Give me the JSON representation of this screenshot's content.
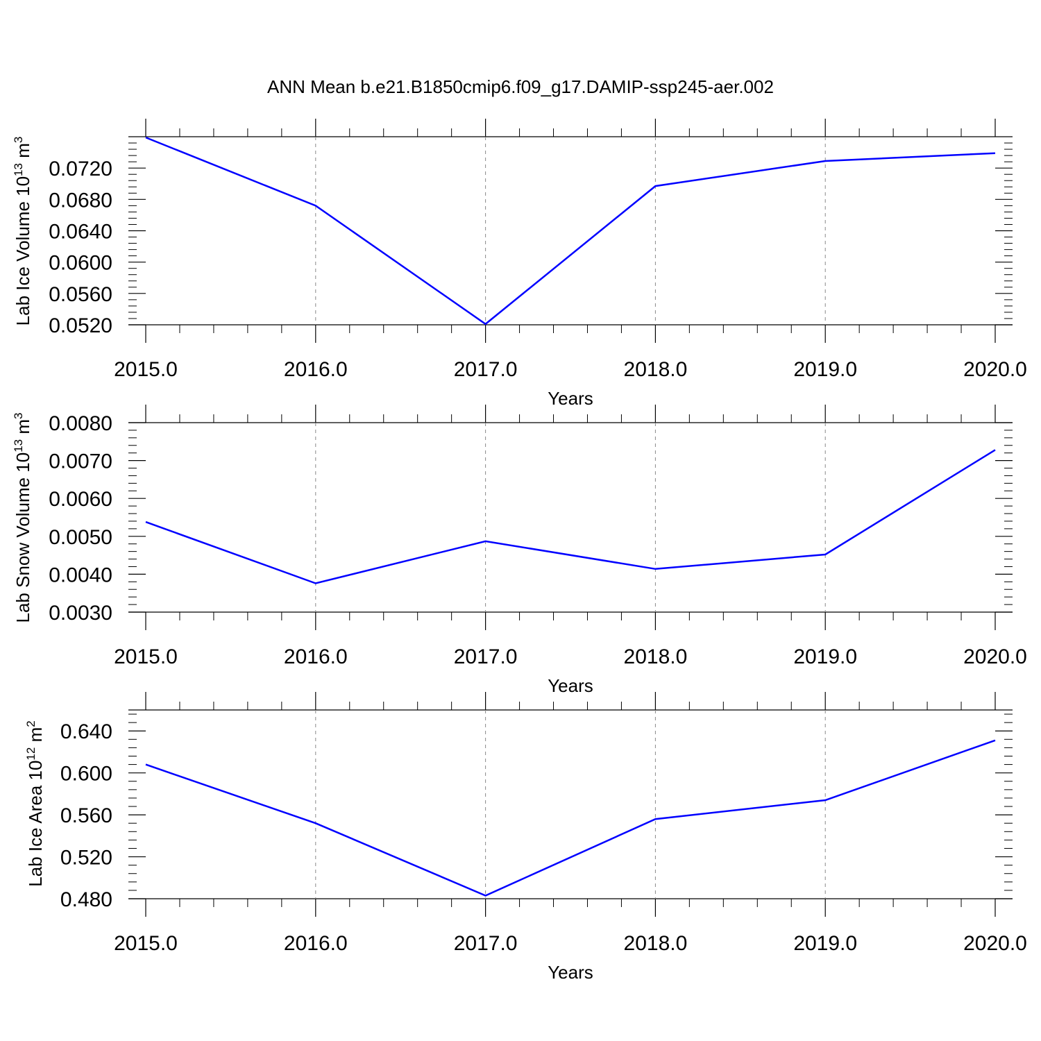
{
  "figure_title": "ANN Mean b.e21.B1850cmip6.f09_g17.DAMIP-ssp245-aer.002",
  "colors": {
    "line": "#0000ff",
    "axis": "#000000",
    "grid": "#888888"
  },
  "panels": [
    {
      "ylabel": {
        "main": "Lab Ice Volume 10",
        "sup": "13",
        "unit": " m",
        "unit_sup": "3"
      },
      "xlabel": "Years"
    },
    {
      "ylabel": {
        "main": "Lab Snow Volume 10",
        "sup": "13",
        "unit": " m",
        "unit_sup": "3"
      },
      "xlabel": "Years"
    },
    {
      "ylabel": {
        "main": "Lab Ice Area 10",
        "sup": "12",
        "unit": " m",
        "unit_sup": "2"
      },
      "xlabel": "Years"
    }
  ],
  "chart_data": [
    {
      "type": "line",
      "title": "ANN Mean b.e21.B1850cmip6.f09_g17.DAMIP-ssp245-aer.002",
      "xlabel": "Years",
      "ylabel": "Lab Ice Volume 10^13 m^3",
      "x": [
        2015,
        2016,
        2017,
        2018,
        2019,
        2020
      ],
      "series": [
        {
          "values": [
            0.0759,
            0.0672,
            0.0521,
            0.0697,
            0.0729,
            0.0739
          ]
        }
      ],
      "xlim": [
        2015,
        2020.1
      ],
      "ylim": [
        0.052,
        0.076
      ],
      "xticks": [
        "2015.0",
        "2016.0",
        "2017.0",
        "2018.0",
        "2019.0",
        "2020.0"
      ],
      "yticks": [
        "0.0520",
        "0.0560",
        "0.0600",
        "0.0640",
        "0.0680",
        "0.0720"
      ],
      "grid": "x-dashed"
    },
    {
      "type": "line",
      "xlabel": "Years",
      "ylabel": "Lab Snow Volume 10^13 m^3",
      "x": [
        2015,
        2016,
        2017,
        2018,
        2019,
        2020
      ],
      "series": [
        {
          "values": [
            0.00538,
            0.00376,
            0.00487,
            0.00414,
            0.00452,
            0.00728
          ]
        }
      ],
      "xlim": [
        2015,
        2020.1
      ],
      "ylim": [
        0.003,
        0.008
      ],
      "xticks": [
        "2015.0",
        "2016.0",
        "2017.0",
        "2018.0",
        "2019.0",
        "2020.0"
      ],
      "yticks": [
        "0.0030",
        "0.0040",
        "0.0050",
        "0.0060",
        "0.0070",
        "0.0080"
      ],
      "grid": "x-dashed"
    },
    {
      "type": "line",
      "xlabel": "Years",
      "ylabel": "Lab Ice Area 10^12 m^2",
      "x": [
        2015,
        2016,
        2017,
        2018,
        2019,
        2020
      ],
      "series": [
        {
          "values": [
            0.608,
            0.552,
            0.483,
            0.556,
            0.574,
            0.631
          ]
        }
      ],
      "xlim": [
        2015,
        2020.1
      ],
      "ylim": [
        0.48,
        0.66
      ],
      "xticks": [
        "2015.0",
        "2016.0",
        "2017.0",
        "2018.0",
        "2019.0",
        "2020.0"
      ],
      "yticks": [
        "0.480",
        "0.520",
        "0.560",
        "0.600",
        "0.640"
      ],
      "grid": "x-dashed"
    }
  ]
}
